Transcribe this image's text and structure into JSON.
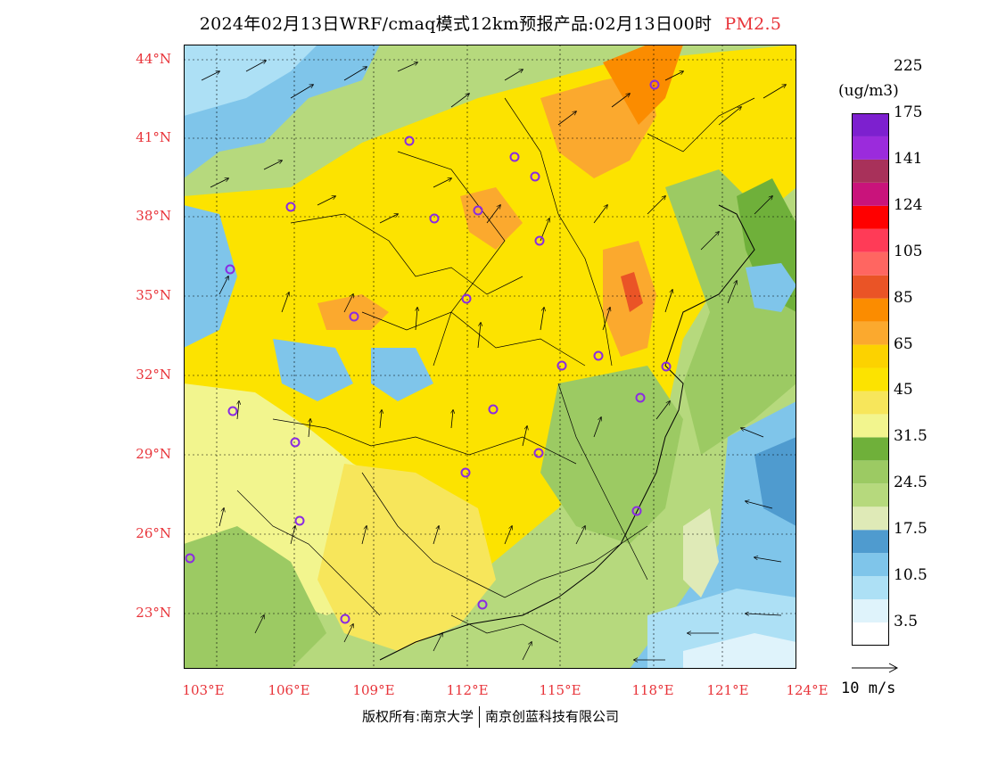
{
  "title": {
    "main": "2024年02月13日WRF/cmaq模式12km预报产品:02月13日00时",
    "pollutant": "PM2.5"
  },
  "lat_labels": [
    "44°N",
    "41°N",
    "38°N",
    "35°N",
    "32°N",
    "29°N",
    "26°N",
    "23°N"
  ],
  "lon_labels": [
    "103°E",
    "106°E",
    "109°E",
    "112°E",
    "115°E",
    "118°E",
    "121°E",
    "124°E"
  ],
  "legend": {
    "unit": "(ug/m3)",
    "colors": [
      "#ffffff",
      "#dff3fb",
      "#ade0f5",
      "#7fc5ea",
      "#4f9bcf",
      "#dfeab7",
      "#b6d97d",
      "#9cca63",
      "#6fb03a",
      "#f2f58e",
      "#f7e65b",
      "#fce300",
      "#fcd200",
      "#fba92e",
      "#fb8c00",
      "#ea5426",
      "#ff6661",
      "#ff3b57",
      "#ff0000",
      "#c9137b",
      "#a8315a",
      "#9b2bdc",
      "#7d20cf"
    ],
    "labels": [
      "3.5",
      "10.5",
      "17.5",
      "24.5",
      "31.5",
      "45",
      "65",
      "85",
      "105",
      "124",
      "141",
      "175",
      "225"
    ]
  },
  "wind_scale": "10 m/s",
  "footer": {
    "left": "版权所有:南京大学",
    "right": "南京创蓝科技有限公司"
  },
  "colors": {
    "label_red": "#e8343a",
    "station_marker": "#8a2be2"
  }
}
